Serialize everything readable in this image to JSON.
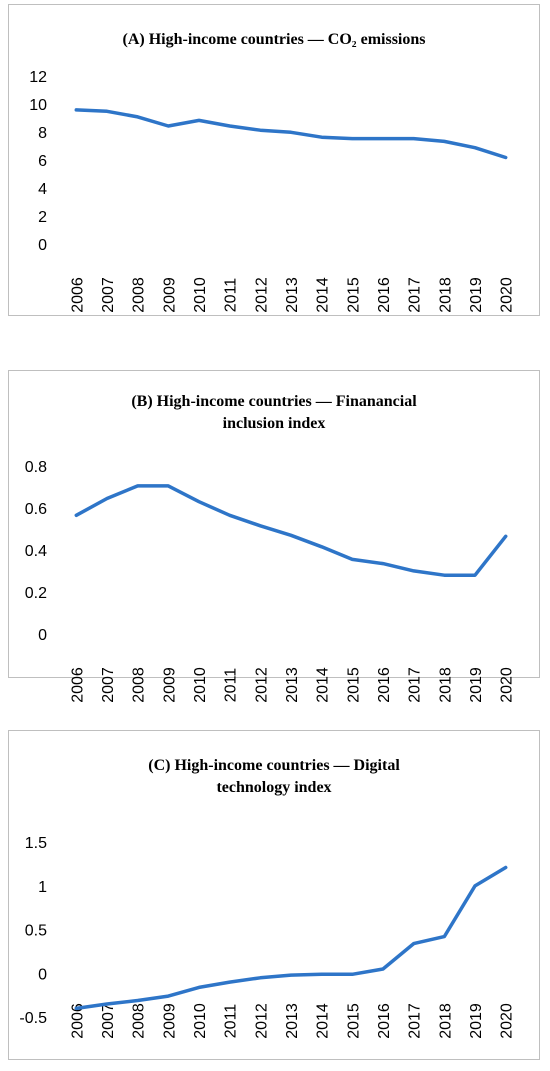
{
  "chart_data": [
    {
      "type": "line",
      "title": "(A) High-income countries — CO₂ emissions",
      "x": [
        "2006",
        "2007",
        "2008",
        "2009",
        "2010",
        "2011",
        "2012",
        "2013",
        "2014",
        "2015",
        "2016",
        "2017",
        "2018",
        "2019",
        "2020"
      ],
      "series": [
        {
          "values": [
            9.65,
            9.55,
            9.15,
            8.5,
            8.9,
            8.5,
            8.2,
            8.05,
            7.7,
            7.6,
            7.6,
            7.6,
            7.4,
            6.95,
            6.25
          ]
        }
      ],
      "yticks": [
        "0",
        "2",
        "4",
        "6",
        "8",
        "10",
        "12"
      ],
      "ylim": [
        0,
        12
      ],
      "color": "#2e75c8",
      "grid": false,
      "legend": "none"
    },
    {
      "type": "line",
      "title": "(B) High-income countries — Finanancial inclusion index",
      "x": [
        "2006",
        "2007",
        "2008",
        "2009",
        "2010",
        "2011",
        "2012",
        "2013",
        "2014",
        "2015",
        "2016",
        "2017",
        "2018",
        "2019",
        "2020"
      ],
      "series": [
        {
          "values": [
            0.57,
            0.65,
            0.71,
            0.71,
            0.635,
            0.57,
            0.52,
            0.475,
            0.42,
            0.36,
            0.34,
            0.305,
            0.285,
            0.285,
            0.47
          ]
        }
      ],
      "yticks": [
        "0",
        "0.2",
        "0.4",
        "0.6",
        "0.8"
      ],
      "ylim": [
        0,
        0.8
      ],
      "color": "#2e75c8",
      "grid": false,
      "legend": "none"
    },
    {
      "type": "line",
      "title": "(C) High-income countries — Digital technology index",
      "x": [
        "2006",
        "2007",
        "2008",
        "2009",
        "2010",
        "2011",
        "2012",
        "2013",
        "2014",
        "2015",
        "2016",
        "2017",
        "2018",
        "2019",
        "2020"
      ],
      "series": [
        {
          "values": [
            -0.39,
            -0.34,
            -0.3,
            -0.25,
            -0.15,
            -0.09,
            -0.04,
            -0.01,
            0.0,
            0.0,
            0.06,
            0.35,
            0.43,
            1.01,
            1.22
          ]
        }
      ],
      "yticks": [
        "-0.5",
        "0",
        "0.5",
        "1",
        "1.5"
      ],
      "ylim": [
        -0.5,
        1.5
      ],
      "color": "#2e75c8",
      "grid": false,
      "legend": "none"
    }
  ]
}
